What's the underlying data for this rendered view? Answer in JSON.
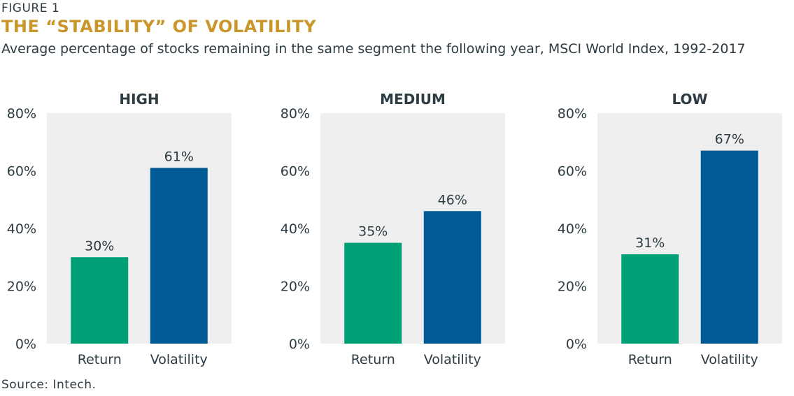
{
  "figure_label": "FIGURE 1",
  "title": "THE “STABILITY” OF VOLATILITY",
  "subtitle": "Average percentage of stocks remaining in the same segment the following year, MSCI World Index, 1992-2017",
  "source": "Source: Intech.",
  "colors": {
    "return": "#00a077",
    "volatility": "#005a96",
    "plot_bg": "#efefef",
    "title": "#c8962a"
  },
  "chart_data": [
    {
      "type": "bar",
      "title": "HIGH",
      "categories": [
        "Return",
        "Volatility"
      ],
      "values": [
        30,
        61
      ],
      "value_labels": [
        "30%",
        "61%"
      ],
      "ylim": [
        0,
        80
      ],
      "yticks": [
        0,
        20,
        40,
        60,
        80
      ],
      "ytick_labels": [
        "0%",
        "20%",
        "40%",
        "60%",
        "80%"
      ]
    },
    {
      "type": "bar",
      "title": "MEDIUM",
      "categories": [
        "Return",
        "Volatility"
      ],
      "values": [
        35,
        46
      ],
      "value_labels": [
        "35%",
        "46%"
      ],
      "ylim": [
        0,
        80
      ],
      "yticks": [
        0,
        20,
        40,
        60,
        80
      ],
      "ytick_labels": [
        "0%",
        "20%",
        "40%",
        "60%",
        "80%"
      ]
    },
    {
      "type": "bar",
      "title": "LOW",
      "categories": [
        "Return",
        "Volatility"
      ],
      "values": [
        31,
        67
      ],
      "value_labels": [
        "31%",
        "67%"
      ],
      "ylim": [
        0,
        80
      ],
      "yticks": [
        0,
        20,
        40,
        60,
        80
      ],
      "ytick_labels": [
        "0%",
        "20%",
        "40%",
        "60%",
        "80%"
      ]
    }
  ]
}
